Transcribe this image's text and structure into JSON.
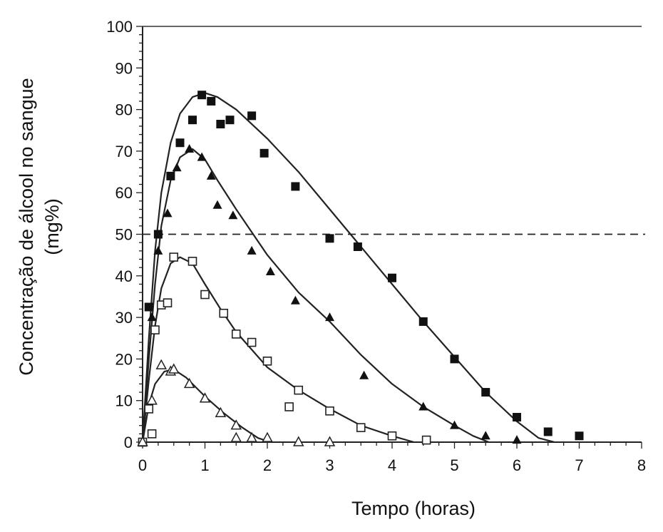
{
  "chart_data": {
    "type": "scatter",
    "title": "",
    "xlabel": "Tempo (horas)",
    "ylabel_line1": "Concentração de álcool no sangue",
    "ylabel_line2": "(mg%)",
    "xlim": [
      0,
      8
    ],
    "ylim": [
      0,
      100
    ],
    "x_ticks": [
      "0",
      "1",
      "2",
      "3",
      "4",
      "5",
      "6",
      "7",
      "8"
    ],
    "y_ticks": [
      "0",
      "10",
      "20",
      "30",
      "40",
      "50",
      "60",
      "70",
      "80",
      "90",
      "100"
    ],
    "grid": false,
    "reference_line": {
      "y": 50,
      "style": "dashed"
    },
    "series": [
      {
        "marker": "filled-square",
        "points": [
          [
            0,
            0
          ],
          [
            0.1,
            32.5
          ],
          [
            0.25,
            50
          ],
          [
            0.45,
            64
          ],
          [
            0.6,
            72
          ],
          [
            0.8,
            77.5
          ],
          [
            0.95,
            83.5
          ],
          [
            1.1,
            82
          ],
          [
            1.25,
            76.5
          ],
          [
            1.4,
            77.5
          ],
          [
            1.75,
            78.5
          ],
          [
            1.95,
            69.5
          ],
          [
            2.45,
            61.5
          ],
          [
            3.0,
            49
          ],
          [
            3.45,
            47
          ],
          [
            4.0,
            39.5
          ],
          [
            4.5,
            29
          ],
          [
            5.0,
            20
          ],
          [
            5.5,
            12
          ],
          [
            6.0,
            6
          ],
          [
            6.5,
            2.5
          ],
          [
            7.0,
            1.5
          ]
        ],
        "curve": [
          [
            0,
            0
          ],
          [
            0.1,
            25
          ],
          [
            0.2,
            46
          ],
          [
            0.3,
            60
          ],
          [
            0.45,
            72
          ],
          [
            0.6,
            79
          ],
          [
            0.8,
            83
          ],
          [
            1.0,
            84
          ],
          [
            1.2,
            83
          ],
          [
            1.5,
            80
          ],
          [
            2.0,
            73
          ],
          [
            2.5,
            65
          ],
          [
            3.0,
            56
          ],
          [
            3.5,
            47
          ],
          [
            4.0,
            38
          ],
          [
            4.5,
            29
          ],
          [
            5.0,
            20.5
          ],
          [
            5.5,
            12
          ],
          [
            6.0,
            5
          ],
          [
            6.35,
            1
          ],
          [
            6.6,
            0
          ]
        ]
      },
      {
        "marker": "filled-triangle",
        "points": [
          [
            0,
            0
          ],
          [
            0.15,
            30
          ],
          [
            0.25,
            46
          ],
          [
            0.4,
            55
          ],
          [
            0.55,
            66
          ],
          [
            0.75,
            70.5
          ],
          [
            0.95,
            68.5
          ],
          [
            1.1,
            64
          ],
          [
            1.2,
            57
          ],
          [
            1.45,
            54.5
          ],
          [
            1.75,
            46
          ],
          [
            2.05,
            41
          ],
          [
            2.45,
            34
          ],
          [
            3.0,
            30
          ],
          [
            3.55,
            16
          ],
          [
            4.5,
            8.5
          ],
          [
            5.0,
            4
          ],
          [
            5.5,
            1.5
          ],
          [
            6.0,
            0.5
          ]
        ],
        "curve": [
          [
            0,
            0
          ],
          [
            0.1,
            20
          ],
          [
            0.2,
            38
          ],
          [
            0.3,
            52
          ],
          [
            0.45,
            63
          ],
          [
            0.6,
            68.5
          ],
          [
            0.8,
            70.5
          ],
          [
            1.0,
            68
          ],
          [
            1.2,
            63
          ],
          [
            1.5,
            56
          ],
          [
            2.0,
            45
          ],
          [
            2.5,
            36
          ],
          [
            3.0,
            29
          ],
          [
            3.5,
            21
          ],
          [
            4.0,
            14
          ],
          [
            4.5,
            8.5
          ],
          [
            5.0,
            4
          ],
          [
            5.3,
            1.5
          ],
          [
            5.55,
            0
          ]
        ]
      },
      {
        "marker": "open-square",
        "points": [
          [
            0,
            0
          ],
          [
            0.15,
            2
          ],
          [
            0.1,
            8
          ],
          [
            0.2,
            27
          ],
          [
            0.3,
            33
          ],
          [
            0.4,
            33.5
          ],
          [
            0.5,
            44.5
          ],
          [
            0.8,
            43.5
          ],
          [
            1.0,
            35.5
          ],
          [
            1.3,
            31
          ],
          [
            1.5,
            26
          ],
          [
            1.75,
            24
          ],
          [
            2.0,
            19.5
          ],
          [
            2.35,
            8.5
          ],
          [
            2.5,
            12.5
          ],
          [
            3.0,
            7.5
          ],
          [
            3.5,
            3.5
          ],
          [
            4.0,
            1.5
          ],
          [
            4.55,
            0.5
          ]
        ],
        "curve": [
          [
            0,
            0
          ],
          [
            0.1,
            15
          ],
          [
            0.2,
            28
          ],
          [
            0.3,
            37
          ],
          [
            0.45,
            43
          ],
          [
            0.6,
            44.5
          ],
          [
            0.8,
            43
          ],
          [
            1.0,
            38
          ],
          [
            1.25,
            32
          ],
          [
            1.5,
            26.5
          ],
          [
            2.0,
            18
          ],
          [
            2.5,
            12.5
          ],
          [
            3.0,
            8
          ],
          [
            3.5,
            4
          ],
          [
            4.0,
            1.5
          ],
          [
            4.35,
            0
          ]
        ]
      },
      {
        "marker": "open-triangle",
        "points": [
          [
            0,
            0
          ],
          [
            0.15,
            10
          ],
          [
            0.3,
            18.5
          ],
          [
            0.45,
            17
          ],
          [
            0.5,
            17.5
          ],
          [
            0.75,
            14
          ],
          [
            1.0,
            10.5
          ],
          [
            1.25,
            7
          ],
          [
            1.5,
            4
          ],
          [
            1.5,
            1
          ],
          [
            1.75,
            1
          ],
          [
            2.0,
            1
          ],
          [
            2.5,
            0
          ],
          [
            3.0,
            0
          ]
        ],
        "curve": [
          [
            0,
            0
          ],
          [
            0.1,
            9
          ],
          [
            0.2,
            14
          ],
          [
            0.35,
            17
          ],
          [
            0.5,
            17.5
          ],
          [
            0.7,
            15.5
          ],
          [
            1.0,
            11
          ],
          [
            1.3,
            7
          ],
          [
            1.6,
            3.5
          ],
          [
            1.85,
            1
          ],
          [
            2.05,
            0
          ]
        ]
      }
    ]
  }
}
